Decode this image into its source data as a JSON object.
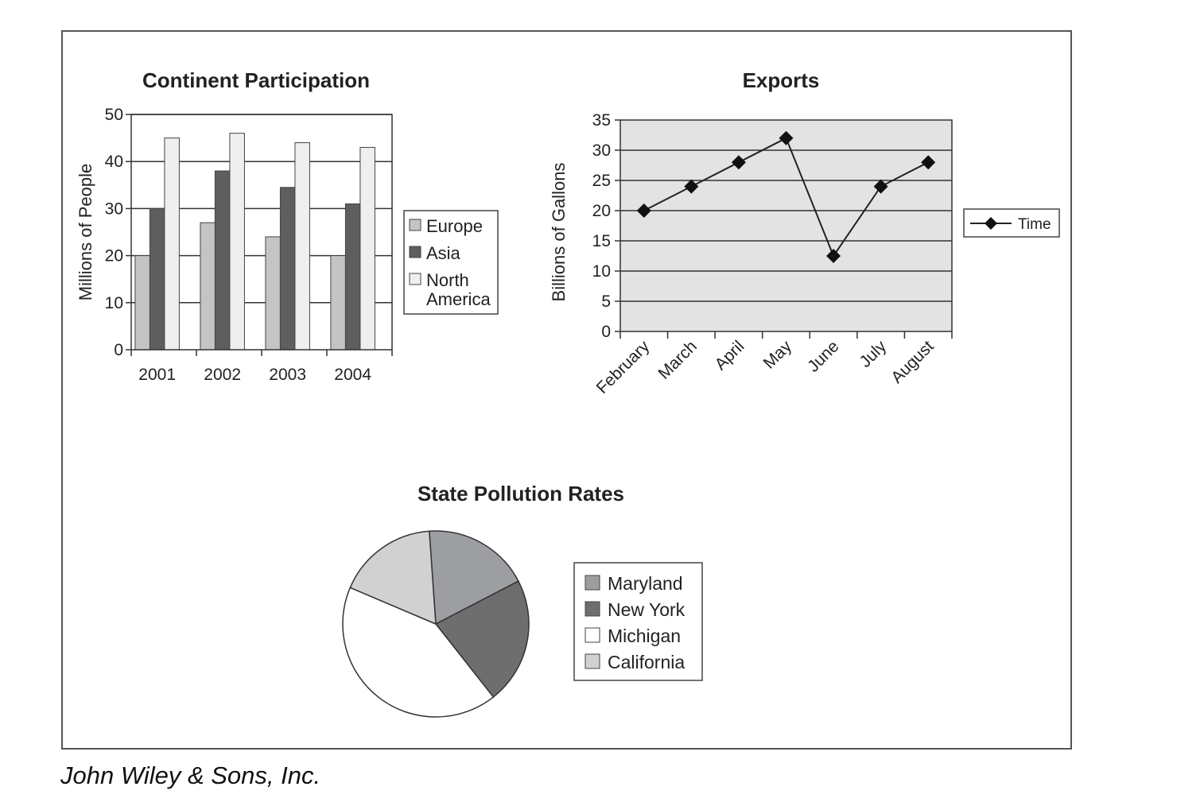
{
  "credit": "John Wiley & Sons, Inc.",
  "chart_data": [
    {
      "type": "bar",
      "title": "Continent Participation",
      "ylabel": "Millions of People",
      "xlabel": "",
      "categories": [
        "2001",
        "2002",
        "2003",
        "2004"
      ],
      "series": [
        {
          "name": "Europe",
          "values": [
            20,
            27,
            24,
            20
          ]
        },
        {
          "name": "Asia",
          "values": [
            30,
            38,
            34.5,
            31
          ]
        },
        {
          "name": "North America",
          "values": [
            45,
            46,
            44,
            43
          ]
        }
      ],
      "legend_lines": [
        [
          "Europe"
        ],
        [
          "Asia"
        ],
        [
          "North",
          "America"
        ]
      ],
      "ylim": [
        0,
        50
      ],
      "yticks": [
        0,
        10,
        20,
        30,
        40,
        50
      ],
      "colors": [
        "#c4c4c4",
        "#5e5e5e",
        "#efefef"
      ],
      "grid": true,
      "legend": "right"
    },
    {
      "type": "line",
      "title": "Exports",
      "ylabel": "Billions of Gallons",
      "xlabel": "",
      "categories": [
        "February",
        "March",
        "April",
        "May",
        "June",
        "July",
        "August"
      ],
      "series": [
        {
          "name": "Time",
          "values": [
            20,
            24,
            28,
            32,
            12.5,
            24,
            28
          ]
        }
      ],
      "ylim": [
        0,
        35
      ],
      "yticks": [
        0,
        5,
        10,
        15,
        20,
        25,
        30,
        35
      ],
      "plot_background": "#e3e3e3",
      "marker": "diamond",
      "grid": true,
      "legend": "right"
    },
    {
      "type": "pie",
      "title": "State Pollution Rates",
      "labels": [
        "Maryland",
        "New York",
        "Michigan",
        "California"
      ],
      "values": [
        18.5,
        22,
        42,
        17.5
      ],
      "colors": [
        "#9d9ea2",
        "#6e6e6e",
        "#ffffff",
        "#d1d1d1"
      ],
      "start_angle_deg": -4,
      "legend": "right"
    }
  ]
}
